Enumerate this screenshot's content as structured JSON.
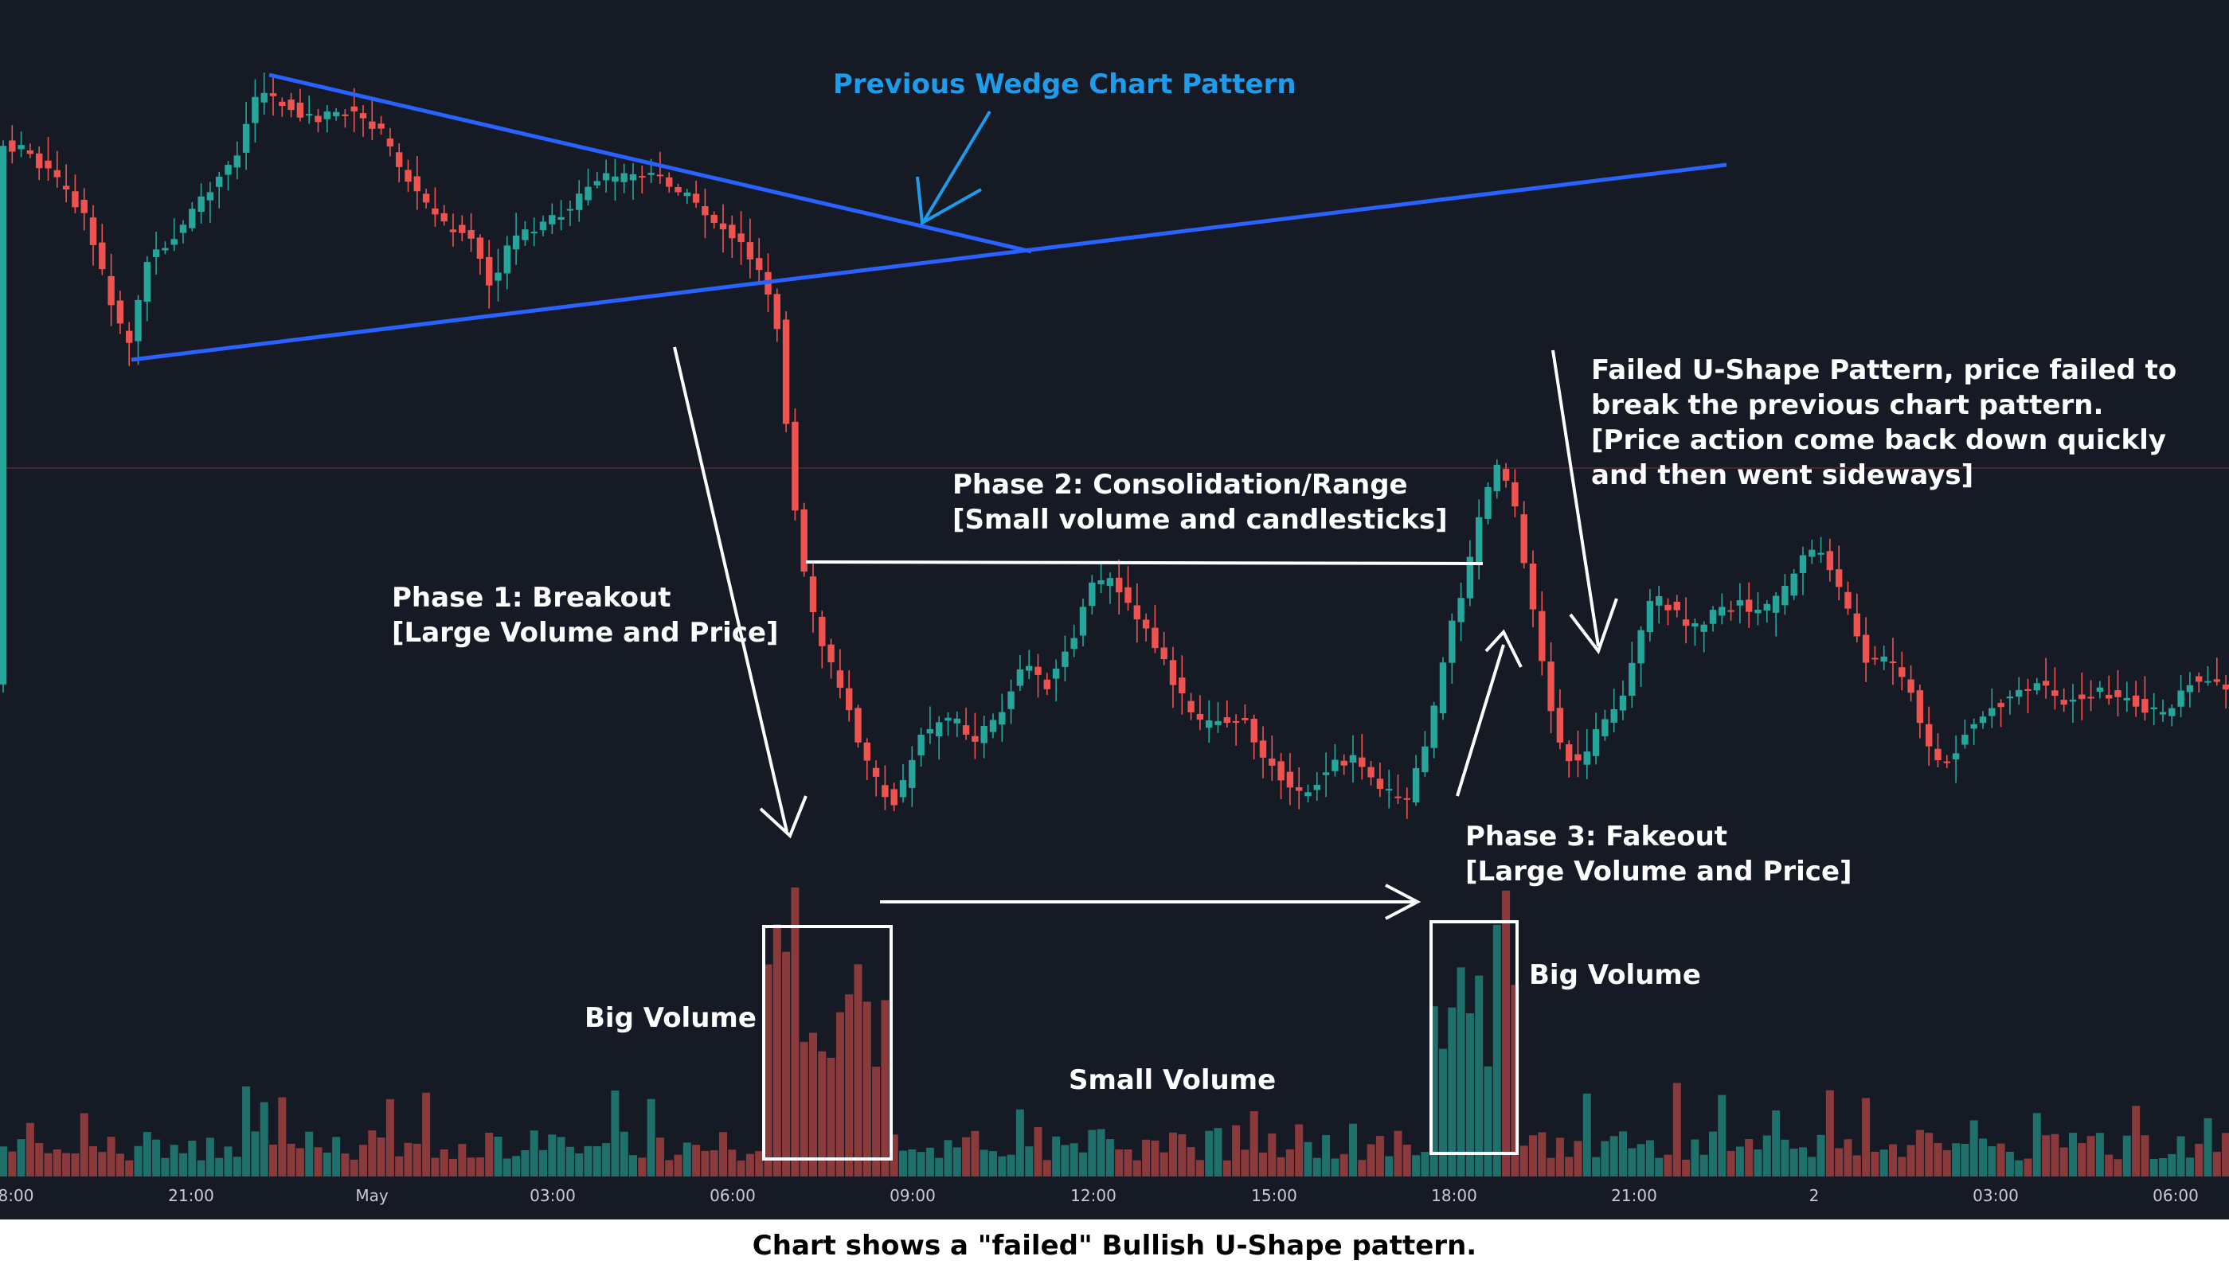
{
  "chart_data": {
    "type": "candlestick",
    "x_tick_labels": [
      "8:00",
      "21:00",
      "May",
      "03:00",
      "06:00",
      "09:00",
      "12:00",
      "15:00",
      "18:00",
      "21:00",
      "2",
      "03:00",
      "06:00"
    ],
    "annotations": {
      "wedge": "Previous Wedge Chart Pattern",
      "phase1": [
        "Phase 1: Breakout",
        "[Large Volume and Price]"
      ],
      "phase2": [
        "Phase 2: Consolidation/Range",
        "[Small volume and candlesticks]"
      ],
      "phase3": [
        "Phase 3: Fakeout",
        "[Large Volume and Price]"
      ],
      "failed": [
        "Failed U-Shape Pattern, price failed to",
        "break the previous chart pattern.",
        "[Price action come back down quickly",
        "and then went sideways]"
      ],
      "big_volume_1": "Big Volume",
      "big_volume_2": "Big Volume",
      "small_volume": "Small Volume"
    },
    "colors": {
      "background": "#161a25",
      "up": "#26a69a",
      "down": "#ef5350",
      "volume_up": "#1f6f6a",
      "volume_down": "#8b3a3c",
      "trendline": "#2962ff",
      "wedge_label": "#1e9bea"
    }
  },
  "caption": "Chart shows a \"failed\" Bullish U-Shape pattern."
}
